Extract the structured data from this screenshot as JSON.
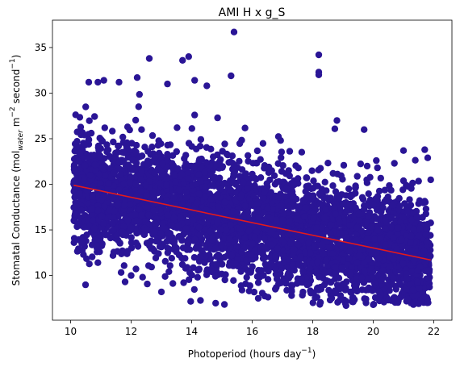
{
  "chart_data": {
    "type": "scatter",
    "title": "AMI H x g_S",
    "xlabel": {
      "main": "Photoperiod (hours day",
      "sup": "−1",
      "end": ")"
    },
    "ylabel": {
      "p1": "Stomatal Conductance (mol",
      "sub": "water",
      "p2": " m",
      "sup1": "−2",
      "p3": " second",
      "sup2": "−1",
      "p4": ")"
    },
    "xlim": [
      9.4,
      22.6
    ],
    "ylim": [
      5.1,
      38.0
    ],
    "xticks": [
      10,
      12,
      14,
      16,
      18,
      20,
      22
    ],
    "yticks": [
      10,
      15,
      20,
      25,
      30,
      35
    ],
    "grid": false,
    "point_color": "#2a1596",
    "line_color": "#e41a1c",
    "scatter": {
      "x_range": [
        10.1,
        21.9
      ],
      "center_line": {
        "x": [
          10.1,
          21.9
        ],
        "y": [
          19.9,
          11.7
        ]
      },
      "spread": 3.2
    },
    "outliers": [
      {
        "x": 15.4,
        "y": 36.7
      },
      {
        "x": 18.2,
        "y": 34.2
      },
      {
        "x": 18.2,
        "y": 32.3
      },
      {
        "x": 18.2,
        "y": 32.0
      },
      {
        "x": 12.6,
        "y": 33.8
      },
      {
        "x": 13.7,
        "y": 33.6
      },
      {
        "x": 13.9,
        "y": 34.0
      },
      {
        "x": 15.3,
        "y": 31.9
      },
      {
        "x": 18.8,
        "y": 27.0
      },
      {
        "x": 19.7,
        "y": 26.0
      },
      {
        "x": 19.1,
        "y": 6.7
      },
      {
        "x": 20.0,
        "y": 6.8
      },
      {
        "x": 21.5,
        "y": 6.9
      },
      {
        "x": 21.9,
        "y": 20.5
      },
      {
        "x": 10.6,
        "y": 31.2
      },
      {
        "x": 10.9,
        "y": 31.2
      },
      {
        "x": 11.1,
        "y": 31.4
      },
      {
        "x": 11.6,
        "y": 31.2
      },
      {
        "x": 12.2,
        "y": 31.7
      },
      {
        "x": 13.2,
        "y": 31.0
      },
      {
        "x": 14.1,
        "y": 31.4
      },
      {
        "x": 14.5,
        "y": 30.8
      },
      {
        "x": 11.8,
        "y": 9.3
      },
      {
        "x": 12.0,
        "y": 10.0
      },
      {
        "x": 13.0,
        "y": 8.2
      },
      {
        "x": 15.9,
        "y": 8.3
      },
      {
        "x": 16.2,
        "y": 7.5
      },
      {
        "x": 17.3,
        "y": 7.8
      },
      {
        "x": 18.9,
        "y": 7.3
      },
      {
        "x": 20.5,
        "y": 7.3
      },
      {
        "x": 21.0,
        "y": 23.7
      },
      {
        "x": 20.7,
        "y": 22.3
      },
      {
        "x": 20.1,
        "y": 22.6
      },
      {
        "x": 19.8,
        "y": 22.0
      },
      {
        "x": 21.7,
        "y": 23.8
      },
      {
        "x": 21.8,
        "y": 22.9
      }
    ]
  }
}
